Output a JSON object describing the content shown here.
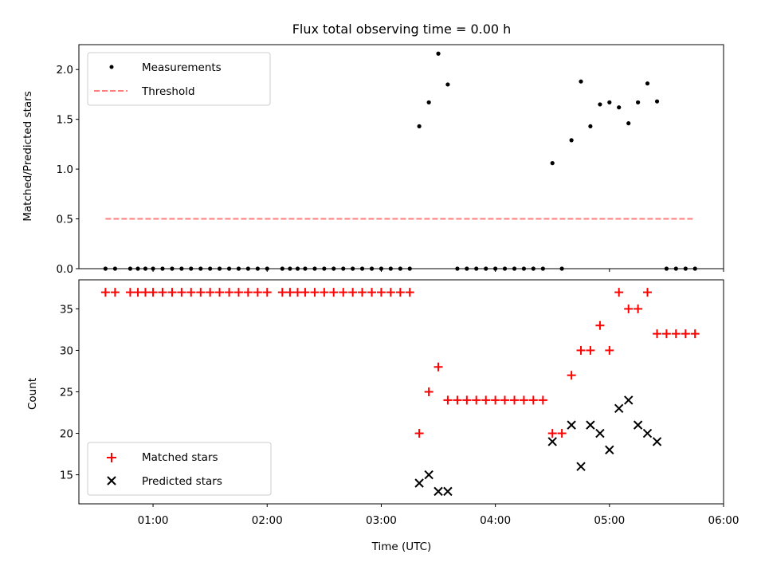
{
  "chart_data": [
    {
      "type": "scatter",
      "title": "Flux total observing time = 0.00 h",
      "xlabel": "",
      "ylabel": "Matched/Predicted stars",
      "ylim": [
        0,
        2.25
      ],
      "xlim": [
        0.35,
        6.0
      ],
      "yticks": [
        "0.0",
        "0.5",
        "1.0",
        "1.5",
        "2.0"
      ],
      "ytick_values": [
        0,
        0.5,
        1.0,
        1.5,
        2.0
      ],
      "legend": "top-left",
      "series": [
        {
          "name": "Measurements",
          "color": "#000000",
          "marker": "dot",
          "points": [
            [
              0.583,
              0
            ],
            [
              0.667,
              0
            ],
            [
              0.8,
              0
            ],
            [
              0.867,
              0
            ],
            [
              0.933,
              0
            ],
            [
              1.0,
              0
            ],
            [
              1.083,
              0
            ],
            [
              1.167,
              0
            ],
            [
              1.25,
              0
            ],
            [
              1.333,
              0
            ],
            [
              1.417,
              0
            ],
            [
              1.5,
              0
            ],
            [
              1.583,
              0
            ],
            [
              1.667,
              0
            ],
            [
              1.75,
              0
            ],
            [
              1.833,
              0
            ],
            [
              1.917,
              0
            ],
            [
              2.0,
              0
            ],
            [
              2.133,
              0
            ],
            [
              2.2,
              0
            ],
            [
              2.267,
              0
            ],
            [
              2.333,
              0
            ],
            [
              2.417,
              0
            ],
            [
              2.5,
              0
            ],
            [
              2.583,
              0
            ],
            [
              2.667,
              0
            ],
            [
              2.75,
              0
            ],
            [
              2.833,
              0
            ],
            [
              2.917,
              0
            ],
            [
              3.0,
              0
            ],
            [
              3.083,
              0
            ],
            [
              3.167,
              0
            ],
            [
              3.25,
              0
            ],
            [
              3.333,
              1.43
            ],
            [
              3.417,
              1.67
            ],
            [
              3.5,
              2.16
            ],
            [
              3.583,
              1.85
            ],
            [
              3.667,
              0
            ],
            [
              3.75,
              0
            ],
            [
              3.833,
              0
            ],
            [
              3.917,
              0
            ],
            [
              4.0,
              0
            ],
            [
              4.083,
              0
            ],
            [
              4.167,
              0
            ],
            [
              4.25,
              0
            ],
            [
              4.333,
              0
            ],
            [
              4.417,
              0
            ],
            [
              4.5,
              1.06
            ],
            [
              4.583,
              0
            ],
            [
              4.667,
              1.29
            ],
            [
              4.75,
              1.88
            ],
            [
              4.833,
              1.43
            ],
            [
              4.917,
              1.65
            ],
            [
              5.0,
              1.67
            ],
            [
              5.083,
              1.62
            ],
            [
              5.167,
              1.46
            ],
            [
              5.25,
              1.67
            ],
            [
              5.333,
              1.86
            ],
            [
              5.417,
              1.68
            ],
            [
              5.5,
              0
            ],
            [
              5.583,
              0
            ],
            [
              5.667,
              0
            ],
            [
              5.75,
              0
            ]
          ]
        },
        {
          "name": "Threshold",
          "color": "#ff7f7f",
          "line": "dashed",
          "points": [
            [
              0.583,
              0.5
            ],
            [
              5.75,
              0.5
            ]
          ]
        }
      ]
    },
    {
      "type": "scatter",
      "title": "",
      "xlabel": "Time (UTC)",
      "ylabel": "Count",
      "ylim": [
        11.5,
        38.5
      ],
      "xlim": [
        0.35,
        6.0
      ],
      "yticks": [
        "15",
        "20",
        "25",
        "30",
        "35"
      ],
      "ytick_values": [
        15,
        20,
        25,
        30,
        35
      ],
      "xticks": [
        "01:00",
        "02:00",
        "03:00",
        "04:00",
        "05:00",
        "06:00"
      ],
      "xtick_values": [
        1,
        2,
        3,
        4,
        5,
        6
      ],
      "legend": "bottom-left",
      "series": [
        {
          "name": "Matched stars",
          "color": "#ff0000",
          "marker": "plus",
          "points": [
            [
              0.583,
              37
            ],
            [
              0.667,
              37
            ],
            [
              0.8,
              37
            ],
            [
              0.867,
              37
            ],
            [
              0.933,
              37
            ],
            [
              1.0,
              37
            ],
            [
              1.083,
              37
            ],
            [
              1.167,
              37
            ],
            [
              1.25,
              37
            ],
            [
              1.333,
              37
            ],
            [
              1.417,
              37
            ],
            [
              1.5,
              37
            ],
            [
              1.583,
              37
            ],
            [
              1.667,
              37
            ],
            [
              1.75,
              37
            ],
            [
              1.833,
              37
            ],
            [
              1.917,
              37
            ],
            [
              2.0,
              37
            ],
            [
              2.133,
              37
            ],
            [
              2.2,
              37
            ],
            [
              2.267,
              37
            ],
            [
              2.333,
              37
            ],
            [
              2.417,
              37
            ],
            [
              2.5,
              37
            ],
            [
              2.583,
              37
            ],
            [
              2.667,
              37
            ],
            [
              2.75,
              37
            ],
            [
              2.833,
              37
            ],
            [
              2.917,
              37
            ],
            [
              3.0,
              37
            ],
            [
              3.083,
              37
            ],
            [
              3.167,
              37
            ],
            [
              3.25,
              37
            ],
            [
              3.333,
              20
            ],
            [
              3.417,
              25
            ],
            [
              3.5,
              28
            ],
            [
              3.583,
              24
            ],
            [
              3.667,
              24
            ],
            [
              3.75,
              24
            ],
            [
              3.833,
              24
            ],
            [
              3.917,
              24
            ],
            [
              4.0,
              24
            ],
            [
              4.083,
              24
            ],
            [
              4.167,
              24
            ],
            [
              4.25,
              24
            ],
            [
              4.333,
              24
            ],
            [
              4.417,
              24
            ],
            [
              4.5,
              20
            ],
            [
              4.583,
              20
            ],
            [
              4.667,
              27
            ],
            [
              4.75,
              30
            ],
            [
              4.833,
              30
            ],
            [
              4.917,
              33
            ],
            [
              5.0,
              30
            ],
            [
              5.083,
              37
            ],
            [
              5.167,
              35
            ],
            [
              5.25,
              35
            ],
            [
              5.333,
              37
            ],
            [
              5.417,
              32
            ],
            [
              5.5,
              32
            ],
            [
              5.583,
              32
            ],
            [
              5.667,
              32
            ],
            [
              5.75,
              32
            ]
          ]
        },
        {
          "name": "Predicted stars",
          "color": "#000000",
          "marker": "x",
          "points": [
            [
              3.333,
              14
            ],
            [
              3.417,
              15
            ],
            [
              3.5,
              13
            ],
            [
              3.583,
              13
            ],
            [
              4.5,
              19
            ],
            [
              4.667,
              21
            ],
            [
              4.75,
              16
            ],
            [
              4.833,
              21
            ],
            [
              4.917,
              20
            ],
            [
              5.0,
              18
            ],
            [
              5.083,
              23
            ],
            [
              5.167,
              24
            ],
            [
              5.25,
              21
            ],
            [
              5.333,
              20
            ],
            [
              5.417,
              19
            ]
          ]
        }
      ]
    }
  ]
}
